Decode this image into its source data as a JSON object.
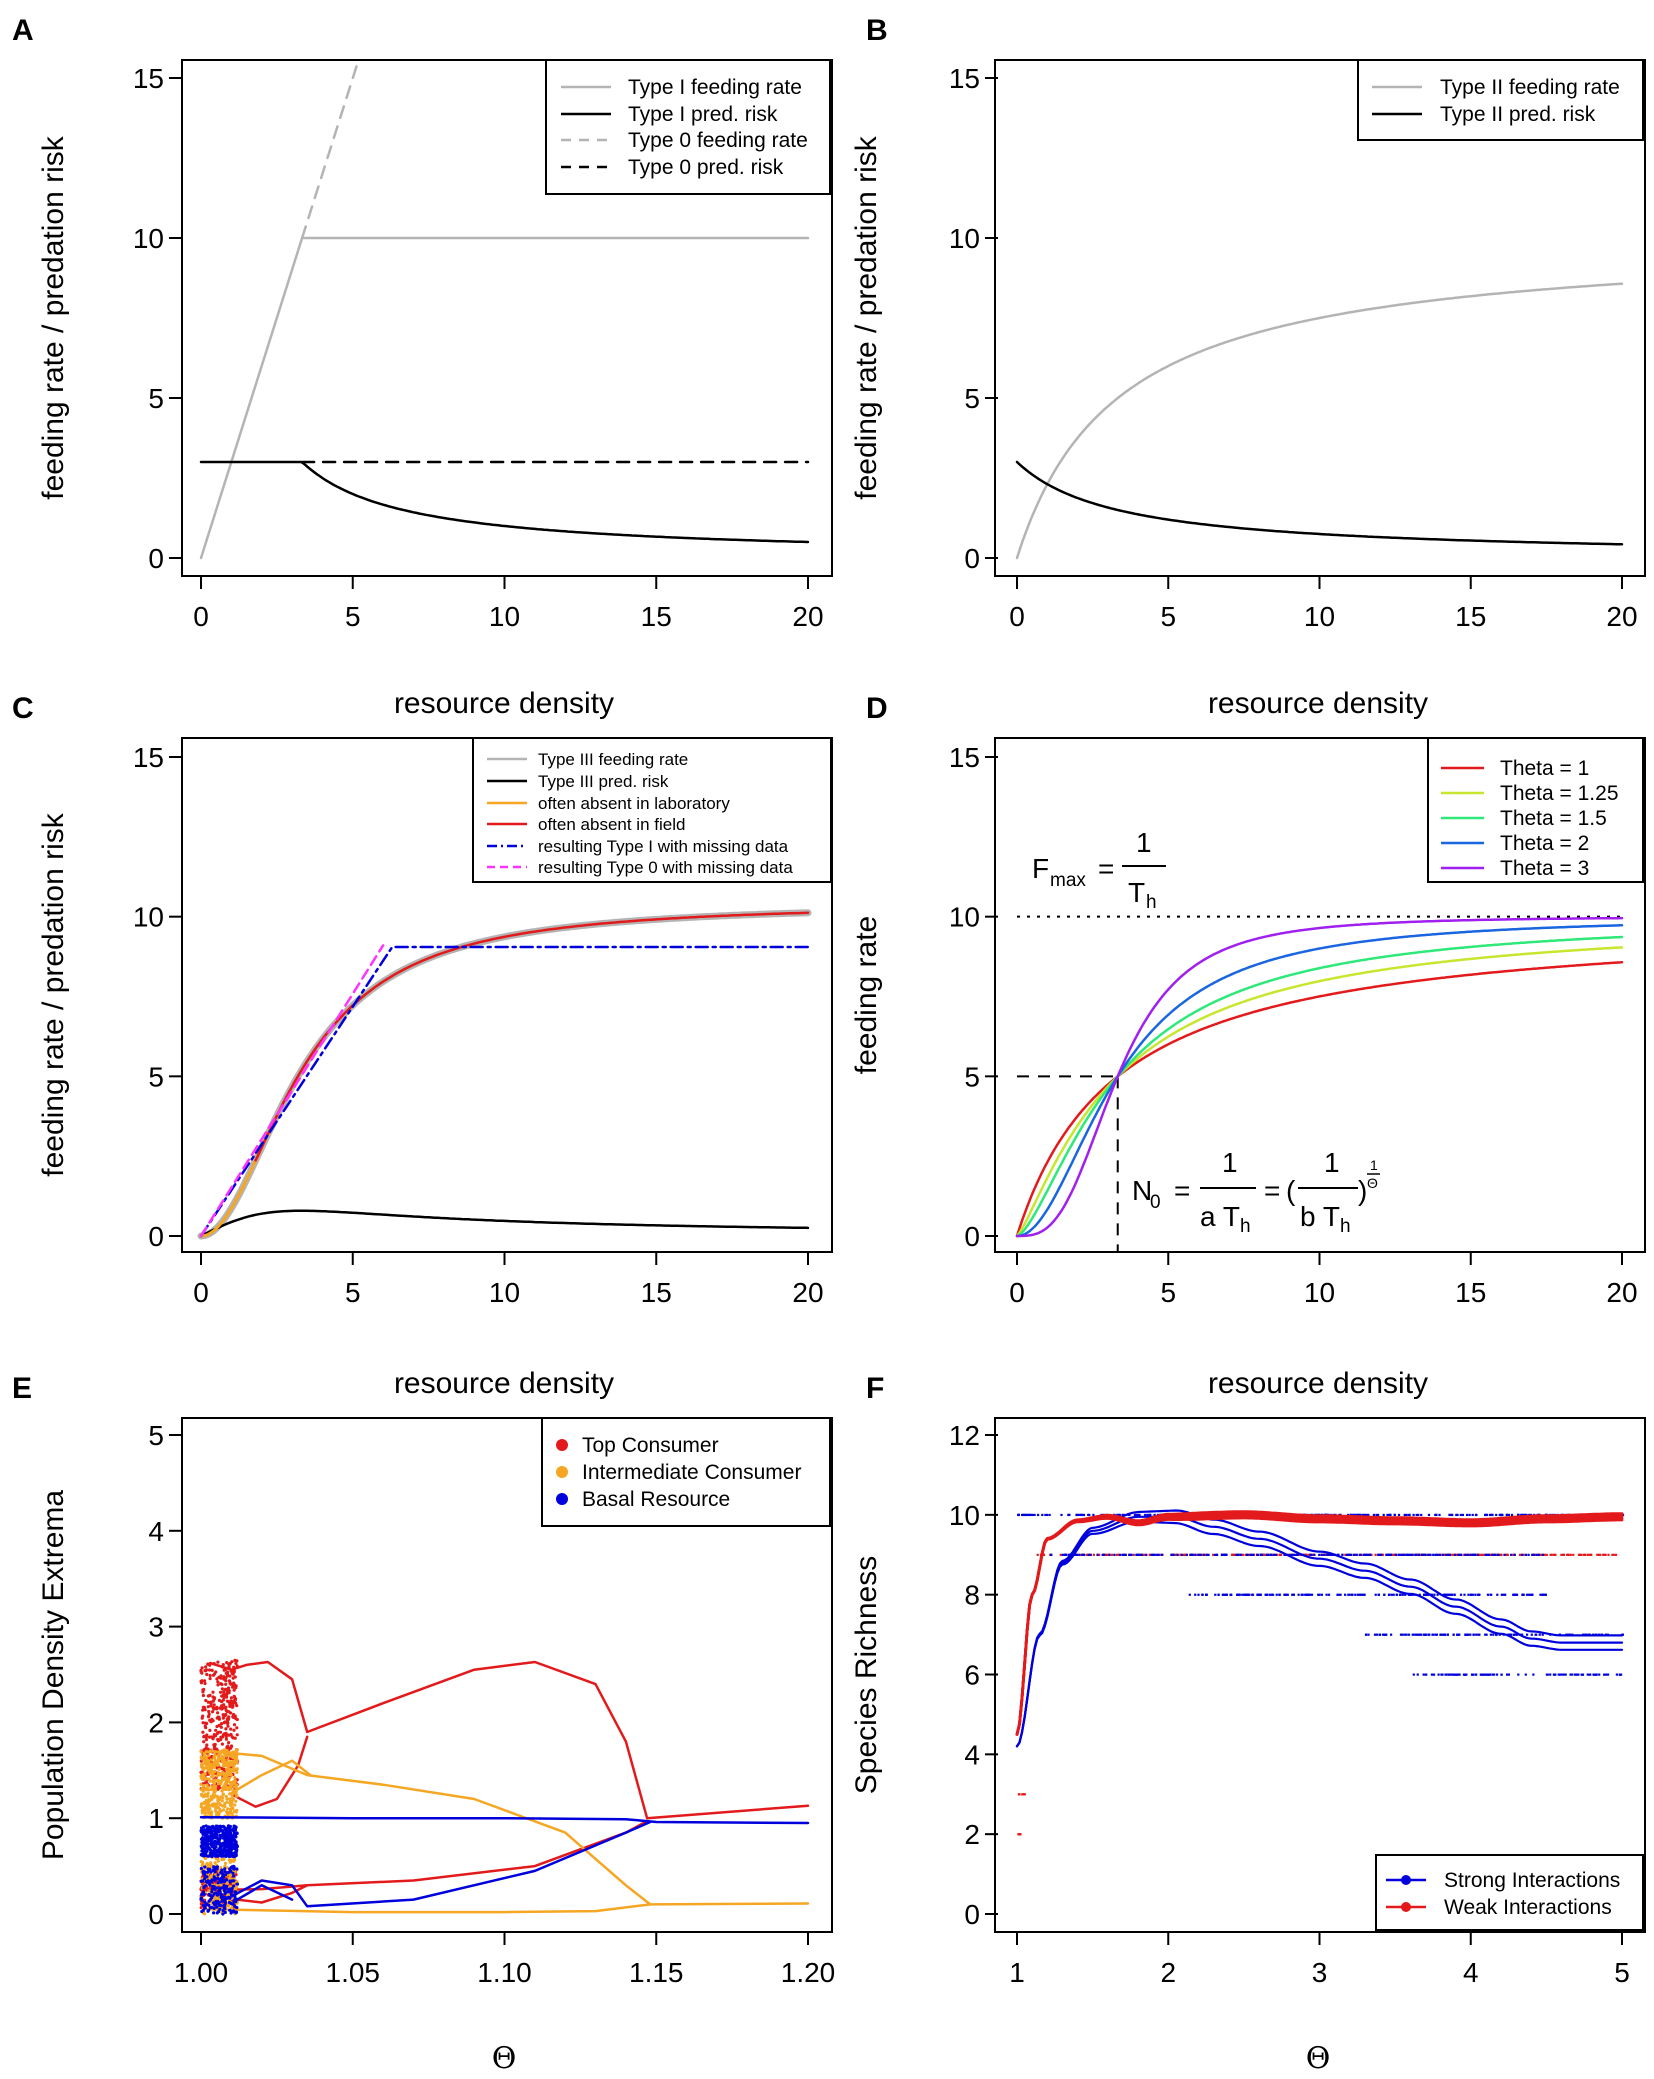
{
  "panels": {
    "A": {
      "label": "A",
      "ylabel": "feeding rate / predation risk",
      "xlabel": "",
      "xticks": [
        "0",
        "5",
        "10",
        "15",
        "20"
      ],
      "yticks": [
        "0",
        "5",
        "10",
        "15"
      ],
      "legend": [
        "Type I feeding rate",
        "Type I pred. risk",
        "Type 0 feeding rate",
        "Type 0 pred. risk"
      ]
    },
    "B": {
      "label": "B",
      "ylabel": "feeding rate / predation risk",
      "xlabel": "",
      "xticks": [
        "0",
        "5",
        "10",
        "15",
        "20"
      ],
      "yticks": [
        "0",
        "5",
        "10",
        "15"
      ],
      "legend": [
        "Type II feeding rate",
        "Type II pred. risk"
      ]
    },
    "C": {
      "label": "C",
      "title": "resource density",
      "ylabel": "feeding rate / predation risk",
      "xticks": [
        "0",
        "5",
        "10",
        "15",
        "20"
      ],
      "yticks": [
        "0",
        "5",
        "10",
        "15"
      ],
      "legend": [
        "Type III feeding rate",
        "Type III pred. risk",
        "often absent in laboratory",
        "often absent in field",
        "resulting Type I with missing data",
        "resulting Type 0 with missing data"
      ]
    },
    "D": {
      "label": "D",
      "title": "resource density",
      "ylabel": "feeding rate",
      "xticks": [
        "0",
        "5",
        "10",
        "15",
        "20"
      ],
      "yticks": [
        "0",
        "5",
        "10",
        "15"
      ],
      "legend_prefix": "Theta =",
      "legend_values": [
        "1",
        "1.25",
        "1.5",
        "2",
        "3"
      ],
      "annotations": {
        "fmax_F": "F",
        "fmax_sub": "max",
        "eq": "=",
        "one": "1",
        "T": "T",
        "h": "h",
        "n0_N": "N",
        "n0_sub": "0",
        "aT": "a T",
        "bT": "b T",
        "open_paren": "(",
        "close_paren": ")",
        "exp_num": "1",
        "exp_den": "Θ"
      }
    },
    "E": {
      "label": "E",
      "title": "resource density",
      "ylabel": "Population Density Extrema",
      "xlabel": "Θ",
      "xticks": [
        "1.00",
        "1.05",
        "1.10",
        "1.15",
        "1.20"
      ],
      "yticks": [
        "0",
        "1",
        "2",
        "3",
        "4",
        "5"
      ],
      "legend": [
        "Top Consumer",
        "Intermediate Consumer",
        "Basal Resource"
      ]
    },
    "F": {
      "label": "F",
      "title": "resource density",
      "ylabel": "Species Richness",
      "xlabel": "Θ",
      "xticks": [
        "1",
        "2",
        "3",
        "4",
        "5"
      ],
      "yticks": [
        "0",
        "2",
        "4",
        "6",
        "8",
        "10",
        "12"
      ],
      "legend": [
        "Strong Interactions",
        "Weak Interactions"
      ]
    }
  },
  "colors": {
    "gray": "#b4b4b4",
    "black": "#000000",
    "orange": "#f5a623",
    "red": "#e31a1c",
    "blue": "#0000dd",
    "magenta": "#ff33ff",
    "theta": [
      "#e31a1c",
      "#c8e62e",
      "#2ee87a",
      "#1a66e0",
      "#a020f0"
    ]
  },
  "chart_data": [
    {
      "id": "A",
      "type": "line",
      "xlim": [
        0,
        20
      ],
      "ylim": [
        0,
        15
      ],
      "series": [
        {
          "name": "Type I feeding rate",
          "color": "gray",
          "style": "solid",
          "x": [
            0,
            3.33,
            20
          ],
          "y": [
            0,
            10,
            10
          ]
        },
        {
          "name": "Type I pred. risk",
          "color": "black",
          "style": "solid",
          "function": "typeI_risk"
        },
        {
          "name": "Type 0 feeding rate",
          "color": "gray",
          "style": "dashed",
          "x": [
            3.33,
            5.17
          ],
          "y": [
            10,
            15.5
          ]
        },
        {
          "name": "Type 0 pred. risk",
          "color": "black",
          "style": "dashed",
          "x": [
            3.33,
            20
          ],
          "y": [
            3,
            3
          ]
        }
      ]
    },
    {
      "id": "B",
      "type": "line",
      "xlim": [
        0,
        20
      ],
      "ylim": [
        0,
        15
      ],
      "series": [
        {
          "name": "Type II feeding rate",
          "color": "gray",
          "style": "solid",
          "function": "F=3x/(1+0.3x)"
        },
        {
          "name": "Type II pred. risk",
          "color": "black",
          "style": "solid",
          "function": "F/x"
        }
      ]
    },
    {
      "id": "C",
      "type": "line",
      "xlim": [
        0,
        20
      ],
      "ylim": [
        0,
        15
      ],
      "series": [
        {
          "name": "Type III feeding rate",
          "color": "gray",
          "style": "solid",
          "function": "hill2"
        },
        {
          "name": "Type III pred. risk",
          "color": "black",
          "style": "solid",
          "function": "hill2/x"
        },
        {
          "name": "often absent in laboratory",
          "color": "orange",
          "style": "solid",
          "range": [
            0,
            2.6
          ]
        },
        {
          "name": "often absent in field",
          "color": "red",
          "style": "solid",
          "range": [
            1.8,
            20
          ]
        },
        {
          "name": "resulting Type I with missing data",
          "color": "blue",
          "style": "dotdash",
          "x": [
            0,
            6.3,
            20
          ],
          "y": [
            0,
            9.05,
            9.05
          ]
        },
        {
          "name": "resulting Type 0 with missing data",
          "color": "magenta",
          "style": "dashed",
          "x": [
            0,
            6.0
          ],
          "y": [
            0,
            9.1
          ]
        }
      ]
    },
    {
      "id": "D",
      "type": "line",
      "xlim": [
        0,
        20
      ],
      "ylim": [
        0,
        15
      ],
      "Fmax": 10,
      "N0": 3.33,
      "series": [
        {
          "name": "Theta = 1",
          "theta": 1
        },
        {
          "name": "Theta = 1.25",
          "theta": 1.25
        },
        {
          "name": "Theta = 1.5",
          "theta": 1.5
        },
        {
          "name": "Theta = 2",
          "theta": 2
        },
        {
          "name": "Theta = 3",
          "theta": 3
        }
      ]
    },
    {
      "id": "E",
      "type": "scatter",
      "xlim": [
        1.0,
        1.2
      ],
      "ylim": [
        0,
        5
      ],
      "series": [
        {
          "name": "Top Consumer",
          "color": "red",
          "curves": [
            [
              [
                1.003,
                2.62
              ],
              [
                1.01,
                2.55
              ],
              [
                1.015,
                2.6
              ],
              [
                1.022,
                2.63
              ],
              [
                1.03,
                2.45
              ],
              [
                1.035,
                1.9
              ],
              [
                1.06,
                2.2
              ],
              [
                1.09,
                2.55
              ],
              [
                1.11,
                2.63
              ],
              [
                1.13,
                2.4
              ],
              [
                1.14,
                1.8
              ],
              [
                1.147,
                1.0
              ],
              [
                1.2,
                1.13
              ]
            ],
            [
              [
                1.01,
                1.25
              ],
              [
                1.018,
                1.12
              ],
              [
                1.025,
                1.2
              ],
              [
                1.032,
                1.55
              ],
              [
                1.035,
                1.85
              ]
            ],
            [
              [
                1.003,
                0.25
              ],
              [
                1.02,
                0.26
              ],
              [
                1.035,
                0.3
              ],
              [
                1.07,
                0.35
              ],
              [
                1.11,
                0.5
              ],
              [
                1.14,
                0.85
              ],
              [
                1.147,
                0.97
              ]
            ],
            [
              [
                1.005,
                0.05
              ],
              [
                1.012,
                0.15
              ],
              [
                1.02,
                0.12
              ],
              [
                1.03,
                0.22
              ],
              [
                1.035,
                0.3
              ]
            ]
          ],
          "scatter_region": {
            "x": [
              1.0,
              1.012
            ],
            "y": [
              1.3,
              2.65
            ],
            "y2": [
              0.05,
              0.45
            ]
          }
        },
        {
          "name": "Intermediate Consumer",
          "color": "orange",
          "curves": [
            [
              [
                1.003,
                1.7
              ],
              [
                1.02,
                1.65
              ],
              [
                1.035,
                1.45
              ],
              [
                1.06,
                1.35
              ],
              [
                1.09,
                1.2
              ],
              [
                1.12,
                0.85
              ],
              [
                1.14,
                0.3
              ],
              [
                1.148,
                0.1
              ],
              [
                1.2,
                0.11
              ]
            ],
            [
              [
                1.012,
                1.3
              ],
              [
                1.02,
                1.45
              ],
              [
                1.03,
                1.6
              ],
              [
                1.036,
                1.45
              ]
            ],
            [
              [
                1.002,
                0.05
              ],
              [
                1.05,
                0.02
              ],
              [
                1.1,
                0.02
              ],
              [
                1.13,
                0.03
              ],
              [
                1.148,
                0.1
              ]
            ]
          ],
          "scatter_region": {
            "x": [
              1.0,
              1.012
            ],
            "y": [
              1.0,
              1.72
            ],
            "y2": [
              0.0,
              0.6
            ]
          }
        },
        {
          "name": "Basal Resource",
          "color": "blue",
          "curves": [
            [
              [
                1.0,
                1.01
              ],
              [
                1.05,
                1.0
              ],
              [
                1.1,
                1.0
              ],
              [
                1.14,
                0.99
              ],
              [
                1.15,
                0.96
              ],
              [
                1.2,
                0.95
              ]
            ],
            [
              [
                1.005,
                0.1
              ],
              [
                1.02,
                0.35
              ],
              [
                1.03,
                0.3
              ],
              [
                1.035,
                0.08
              ],
              [
                1.07,
                0.15
              ],
              [
                1.11,
                0.45
              ],
              [
                1.14,
                0.85
              ],
              [
                1.148,
                0.96
              ]
            ],
            [
              [
                1.012,
                0.15
              ],
              [
                1.02,
                0.3
              ],
              [
                1.03,
                0.15
              ]
            ]
          ],
          "scatter_region": {
            "x": [
              1.0,
              1.012
            ],
            "y": [
              0.6,
              0.92
            ],
            "y2": [
              0.0,
              0.5
            ]
          }
        }
      ]
    },
    {
      "id": "F",
      "type": "line",
      "xlim": [
        1,
        5
      ],
      "ylim": [
        0,
        12
      ],
      "series": [
        {
          "name": "Strong Interactions",
          "color": "blue",
          "band": [
            [
              1,
              4.2
            ],
            [
              1.15,
              7.0
            ],
            [
              1.3,
              8.8
            ],
            [
              1.5,
              9.6
            ],
            [
              1.8,
              9.95
            ],
            [
              2.05,
              9.95
            ],
            [
              2.3,
              9.7
            ],
            [
              2.6,
              9.4
            ],
            [
              3.0,
              8.9
            ],
            [
              3.3,
              8.6
            ],
            [
              3.6,
              8.2
            ],
            [
              3.9,
              7.7
            ],
            [
              4.2,
              7.2
            ],
            [
              4.4,
              6.9
            ],
            [
              4.6,
              6.8
            ],
            [
              4.8,
              6.8
            ],
            [
              5.0,
              6.8
            ]
          ],
          "spread": 0.18
        },
        {
          "name": "Weak Interactions",
          "color": "red",
          "band": [
            [
              1,
              4.5
            ],
            [
              1.1,
              8.0
            ],
            [
              1.2,
              9.4
            ],
            [
              1.4,
              9.85
            ],
            [
              1.6,
              9.95
            ],
            [
              1.8,
              9.8
            ],
            [
              2.0,
              9.95
            ],
            [
              2.5,
              10
            ],
            [
              3.0,
              9.9
            ],
            [
              3.5,
              9.85
            ],
            [
              4.0,
              9.8
            ],
            [
              4.5,
              9.9
            ],
            [
              5.0,
              9.95
            ]
          ],
          "spread": 0.08
        }
      ],
      "dot_rows": [
        {
          "y": 10,
          "x": [
            1.0,
            5.0
          ],
          "color": "blue"
        },
        {
          "y": 9,
          "x": [
            1.1,
            5.0
          ],
          "color": "red"
        },
        {
          "y": 9,
          "x": [
            1.2,
            4.5
          ],
          "color": "blue"
        },
        {
          "y": 8,
          "x": [
            2.1,
            4.5
          ],
          "color": "blue"
        },
        {
          "y": 7,
          "x": [
            3.3,
            5.0
          ],
          "color": "blue"
        },
        {
          "y": 6,
          "x": [
            3.6,
            5.0
          ],
          "color": "blue"
        },
        {
          "y": 3,
          "x": [
            1.0,
            1.05
          ],
          "color": "red"
        },
        {
          "y": 2,
          "x": [
            1.0,
            1.02
          ],
          "color": "red"
        }
      ]
    }
  ]
}
